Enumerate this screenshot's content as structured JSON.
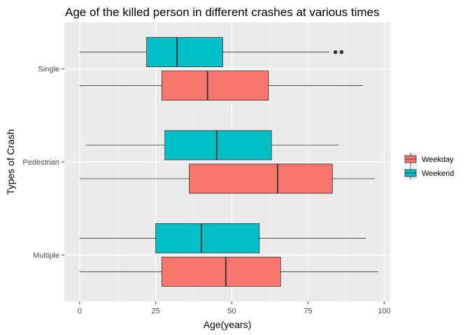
{
  "chart_data": {
    "type": "boxplot",
    "orientation": "horizontal",
    "title": "Age of the killed person in different crashes at various times",
    "xlabel": "Age(years)",
    "ylabel": "Types of Crash",
    "xlim": [
      -5,
      102
    ],
    "xticks": [
      0,
      25,
      50,
      75,
      100
    ],
    "categories": [
      "Multiple",
      "Pedestrian",
      "Single"
    ],
    "grid": true,
    "legend_position": "right",
    "series": [
      {
        "name": "Weekday",
        "color": "#F8766D",
        "boxes": [
          {
            "category": "Multiple",
            "min": 0,
            "q1": 27,
            "median": 48,
            "q3": 66,
            "max": 98,
            "outliers": []
          },
          {
            "category": "Pedestrian",
            "min": 0,
            "q1": 36,
            "median": 65,
            "q3": 83,
            "max": 97,
            "outliers": []
          },
          {
            "category": "Single",
            "min": 0,
            "q1": 27,
            "median": 42,
            "q3": 62,
            "max": 93,
            "outliers": []
          }
        ]
      },
      {
        "name": "Weekend",
        "color": "#00BFC4",
        "boxes": [
          {
            "category": "Multiple",
            "min": 0,
            "q1": 25,
            "median": 40,
            "q3": 59,
            "max": 94,
            "outliers": []
          },
          {
            "category": "Pedestrian",
            "min": 2,
            "q1": 28,
            "median": 45,
            "q3": 63,
            "max": 85,
            "outliers": []
          },
          {
            "category": "Single",
            "min": 0,
            "q1": 22,
            "median": 32,
            "q3": 47,
            "max": 82,
            "outliers": [
              84,
              86
            ]
          }
        ]
      }
    ]
  }
}
